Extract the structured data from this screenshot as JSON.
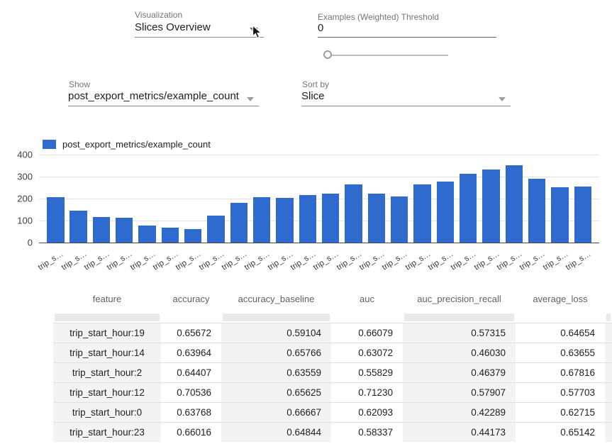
{
  "accent": {
    "bar_color": "#2f6bce",
    "grid_color": "#e3e3e3",
    "axis_color": "#4a4a4a"
  },
  "controls": {
    "visualization": {
      "label": "Visualization",
      "value": "Slices Overview"
    },
    "threshold": {
      "label": "Examples (Weighted) Threshold",
      "value": "0",
      "slider_position": "0%"
    },
    "show": {
      "label": "Show",
      "value": "post_export_metrics/example_count"
    },
    "sort_by": {
      "label": "Sort by",
      "value": "Slice"
    }
  },
  "chart_data": {
    "type": "bar",
    "title": "",
    "legend": "post_export_metrics/example_count",
    "legend_position": "top",
    "grid": true,
    "ylim": [
      0,
      400
    ],
    "yticks": [
      0,
      100,
      200,
      300,
      400
    ],
    "categories": [
      "trip_s…",
      "trip_s…",
      "trip_s…",
      "trip_s…",
      "trip_s…",
      "trip_s…",
      "trip_s…",
      "trip_s…",
      "trip_s…",
      "trip_s…",
      "trip_s…",
      "trip_s…",
      "trip_s…",
      "trip_s…",
      "trip_s…",
      "trip_s…",
      "trip_s…",
      "trip_s…",
      "trip_s…",
      "trip_s…",
      "trip_s…",
      "trip_s…",
      "trip_s…",
      "trip_s…"
    ],
    "values": [
      206,
      146,
      115,
      112,
      76,
      67,
      60,
      122,
      180,
      207,
      204,
      215,
      222,
      266,
      221,
      210,
      263,
      278,
      312,
      331,
      351,
      291,
      253,
      256
    ]
  },
  "table": {
    "columns": [
      "feature",
      "accuracy",
      "accuracy_baseline",
      "auc",
      "auc_precision_recall",
      "average_loss",
      ""
    ],
    "shaded_columns": [
      0,
      2,
      4,
      6
    ],
    "rows": [
      [
        "trip_start_hour:19",
        "0.65672",
        "0.59104",
        "0.66079",
        "0.57315",
        "0.64654",
        ""
      ],
      [
        "trip_start_hour:14",
        "0.63964",
        "0.65766",
        "0.63072",
        "0.46030",
        "0.63655",
        ""
      ],
      [
        "trip_start_hour:2",
        "0.64407",
        "0.63559",
        "0.55829",
        "0.46379",
        "0.67816",
        ""
      ],
      [
        "trip_start_hour:12",
        "0.70536",
        "0.65625",
        "0.71230",
        "0.57907",
        "0.57703",
        ""
      ],
      [
        "trip_start_hour:0",
        "0.63768",
        "0.66667",
        "0.62093",
        "0.42289",
        "0.62715",
        ""
      ],
      [
        "trip_start_hour:23",
        "0.66016",
        "0.64844",
        "0.58337",
        "0.44173",
        "0.65142",
        ""
      ]
    ]
  }
}
